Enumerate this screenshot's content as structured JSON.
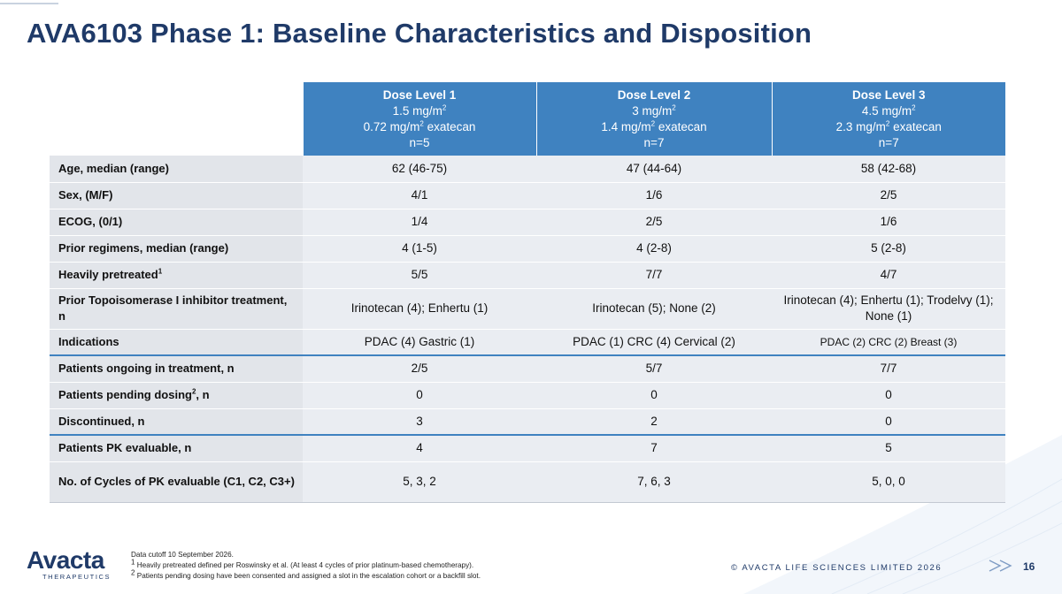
{
  "slide": {
    "title": "AVA6103 Phase 1: Baseline Characteristics and Disposition",
    "page_number": "16",
    "copyright": "© AVACTA LIFE SCIENCES LIMITED 2026"
  },
  "logo": {
    "brand": "Avacta",
    "subtitle": "THERAPEUTICS"
  },
  "table": {
    "columns": [
      {
        "level": "Dose Level 1",
        "dose_value": "1.5 mg/m",
        "exatecan_value": "0.72 mg/m",
        "exatecan_suffix": " exatecan",
        "n": "n=5"
      },
      {
        "level": "Dose Level 2",
        "dose_value": "3 mg/m",
        "exatecan_value": "1.4 mg/m",
        "exatecan_suffix": " exatecan",
        "n": "n=7"
      },
      {
        "level": "Dose Level 3",
        "dose_value": "4.5 mg/m",
        "exatecan_value": "2.3 mg/m",
        "exatecan_suffix": " exatecan",
        "n": "n=7"
      }
    ],
    "superscript_2": "2",
    "rows": [
      {
        "label": "Age, median (range)",
        "values": [
          "62 (46-75)",
          "47 (44-64)",
          "58 (42-68)"
        ]
      },
      {
        "label": "Sex, (M/F)",
        "values": [
          "4/1",
          "1/6",
          "2/5"
        ]
      },
      {
        "label": "ECOG, (0/1)",
        "values": [
          "1/4",
          "2/5",
          "1/6"
        ]
      },
      {
        "label": "Prior regimens, median (range)",
        "values": [
          "4 (1-5)",
          "4 (2-8)",
          "5 (2-8)"
        ]
      },
      {
        "label": "Heavily pretreated",
        "label_sup": "1",
        "values": [
          "5/5",
          "7/7",
          "4/7"
        ]
      },
      {
        "label": "Prior Topoisomerase I inhibitor treatment, n",
        "values": [
          "Irinotecan (4); Enhertu (1)",
          "Irinotecan (5); None (2)",
          "Irinotecan (4); Enhertu (1); Trodelvy (1); None (1)"
        ]
      },
      {
        "label": "Indications",
        "values": [
          "PDAC (4) Gastric (1)",
          "PDAC (1) CRC (4) Cervical (2)",
          "PDAC (2) CRC (2) Breast (3)"
        ]
      },
      {
        "label": "Patients ongoing in treatment, n",
        "values": [
          "2/5",
          "5/7",
          "7/7"
        ]
      },
      {
        "label": "Patients pending dosing",
        "label_sup": "2",
        "label_suffix": ", n",
        "values": [
          "0",
          "0",
          "0"
        ]
      },
      {
        "label": "Discontinued, n",
        "values": [
          "3",
          "2",
          "0"
        ]
      },
      {
        "label": "Patients PK evaluable, n",
        "values": [
          "4",
          "7",
          "5"
        ]
      },
      {
        "label": "No. of Cycles of PK evaluable (C1, C2, C3+)",
        "values": [
          "5, 3, 2",
          "7, 6, 3",
          "5, 0, 0"
        ]
      }
    ]
  },
  "footnotes": {
    "cutoff": "Data cutoff 10 September 2026.",
    "fn1_mark": "1",
    "fn1": " Heavily pretreated defined per Roswinsky et al. (At least 4 cycles of prior platinum-based chemotherapy).",
    "fn2_mark": "2",
    "fn2": " Patients pending dosing have been consented and assigned a slot in the escalation cohort or a backfill slot."
  },
  "colors": {
    "header_blue": "#3f82c0",
    "title_navy": "#1f3a68",
    "row_grey": "#eaedf2",
    "label_grey": "#e2e5ea"
  },
  "icons": {
    "logo_icon": "avacta-logo",
    "arrows": "double-chevron-right-icon"
  }
}
